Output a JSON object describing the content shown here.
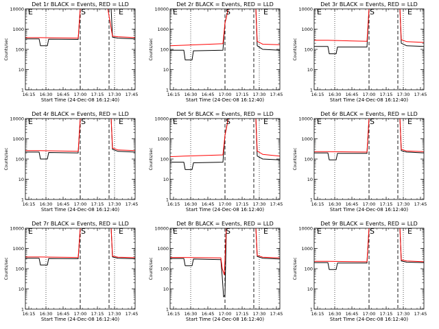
{
  "chart_data": [
    {
      "type": "line",
      "title": "Det 1r BLACK = Events, RED = LLD",
      "xlabel": "Start Time (24-Dec-08 16:12:40)",
      "ylabel": "Counts/sec",
      "yscale": "log",
      "ylim": [
        1,
        10000
      ],
      "ytick_labels": [
        "1",
        "10",
        "100",
        "1000",
        "10000"
      ],
      "xlim": [
        16.2,
        17.8
      ],
      "xtick_labels": [
        "16:15",
        "16:30",
        "16:45",
        "17:00",
        "17:15",
        "17:30",
        "17:45"
      ],
      "markers": [
        {
          "label": "E",
          "x": 16.23
        },
        {
          "label": "S",
          "x": 17.0
        },
        {
          "label": "E",
          "x": 17.55
        }
      ],
      "series": [
        {
          "name": "Events",
          "color": "#000000",
          "x": [
            16.2,
            16.4,
            16.42,
            16.52,
            16.54,
            16.97,
            17.0,
            17.05,
            17.45,
            17.47,
            17.55,
            17.8
          ],
          "y": [
            330,
            330,
            150,
            150,
            320,
            310,
            10000,
            12000,
            12000,
            400,
            360,
            330
          ]
        },
        {
          "name": "LLD",
          "color": "#ff0000",
          "x": [
            16.2,
            16.4,
            16.97,
            17.0,
            17.05,
            17.4,
            17.47,
            17.55,
            17.8
          ],
          "y": [
            380,
            380,
            360,
            10000,
            12000,
            12000,
            450,
            420,
            380
          ]
        }
      ]
    },
    {
      "type": "line",
      "title": "Det 2r BLACK = Events, RED = LLD",
      "xlabel": "Start Time (24-Dec-08 16:12:40)",
      "ylabel": "Counts/sec",
      "yscale": "log",
      "ylim": [
        1,
        10000
      ],
      "ytick_labels": [
        "1",
        "10",
        "100",
        "1000",
        "10000"
      ],
      "xlim": [
        16.2,
        17.8
      ],
      "xtick_labels": [
        "16:15",
        "16:30",
        "16:45",
        "17:00",
        "17:15",
        "17:30",
        "17:45"
      ],
      "markers": [
        {
          "label": "E",
          "x": 16.23
        },
        {
          "label": "S",
          "x": 17.0
        },
        {
          "label": "E",
          "x": 17.55
        }
      ],
      "series": [
        {
          "name": "Events",
          "color": "#000000",
          "x": [
            16.2,
            16.4,
            16.42,
            16.52,
            16.54,
            16.97,
            17.0,
            17.05,
            17.45,
            17.47,
            17.55,
            17.8
          ],
          "y": [
            90,
            90,
            30,
            30,
            85,
            90,
            2000,
            12000,
            12000,
            150,
            100,
            90
          ]
        },
        {
          "name": "LLD",
          "color": "#ff0000",
          "x": [
            16.2,
            16.4,
            16.97,
            17.0,
            17.05,
            17.45,
            17.47,
            17.55,
            17.8
          ],
          "y": [
            150,
            160,
            190,
            2000,
            12000,
            12000,
            250,
            180,
            170
          ]
        }
      ]
    },
    {
      "type": "line",
      "title": "Det 3r BLACK = Events, RED = LLD",
      "xlabel": "Start Time (24-Dec-08 16:12:40)",
      "ylabel": "Counts/sec",
      "yscale": "log",
      "ylim": [
        1,
        10000
      ],
      "ytick_labels": [
        "1",
        "10",
        "100",
        "1000",
        "10000"
      ],
      "xlim": [
        16.2,
        17.8
      ],
      "xtick_labels": [
        "16:15",
        "16:30",
        "16:45",
        "17:00",
        "17:15",
        "17:30",
        "17:45"
      ],
      "markers": [
        {
          "label": "E",
          "x": 16.23
        },
        {
          "label": "S",
          "x": 17.0
        },
        {
          "label": "E",
          "x": 17.55
        }
      ],
      "series": [
        {
          "name": "Events",
          "color": "#000000",
          "x": [
            16.2,
            16.4,
            16.42,
            16.52,
            16.54,
            16.97,
            17.0,
            17.05,
            17.45,
            17.47,
            17.55,
            17.8
          ],
          "y": [
            140,
            140,
            60,
            60,
            130,
            130,
            10000,
            12000,
            12000,
            200,
            150,
            140
          ]
        },
        {
          "name": "LLD",
          "color": "#ff0000",
          "x": [
            16.2,
            16.4,
            16.97,
            17.0,
            17.05,
            17.45,
            17.47,
            17.55,
            17.8
          ],
          "y": [
            280,
            280,
            250,
            10000,
            12000,
            12000,
            300,
            240,
            220
          ]
        }
      ]
    },
    {
      "type": "line",
      "title": "Det 4r BLACK = Events, RED = LLD",
      "xlabel": "Start Time (24-Dec-08 16:12:40)",
      "ylabel": "Counts/sec",
      "yscale": "log",
      "ylim": [
        1,
        10000
      ],
      "ytick_labels": [
        "1",
        "10",
        "100",
        "1000",
        "10000"
      ],
      "xlim": [
        16.2,
        17.8
      ],
      "xtick_labels": [
        "16:15",
        "16:30",
        "16:45",
        "17:00",
        "17:15",
        "17:30",
        "17:45"
      ],
      "markers": [
        {
          "label": "E",
          "x": 16.23
        },
        {
          "label": "S",
          "x": 17.0
        },
        {
          "label": "E",
          "x": 17.55
        }
      ],
      "series": [
        {
          "name": "Events",
          "color": "#000000",
          "x": [
            16.2,
            16.4,
            16.42,
            16.52,
            16.54,
            16.97,
            17.0,
            17.05,
            17.45,
            17.47,
            17.55,
            17.8
          ],
          "y": [
            220,
            220,
            100,
            100,
            210,
            200,
            10000,
            12000,
            12000,
            300,
            240,
            220
          ]
        },
        {
          "name": "LLD",
          "color": "#ff0000",
          "x": [
            16.2,
            16.4,
            16.97,
            17.0,
            17.05,
            17.45,
            17.47,
            17.55,
            17.8
          ],
          "y": [
            260,
            260,
            240,
            10000,
            12000,
            12000,
            350,
            280,
            260
          ]
        }
      ]
    },
    {
      "type": "line",
      "title": "Det 5r BLACK = Events, RED = LLD",
      "xlabel": "Start Time (24-Dec-08 16:12:40)",
      "ylabel": "Counts/sec",
      "yscale": "log",
      "ylim": [
        1,
        10000
      ],
      "ytick_labels": [
        "1",
        "10",
        "100",
        "1000",
        "10000"
      ],
      "xlim": [
        16.2,
        17.8
      ],
      "xtick_labels": [
        "16:15",
        "16:30",
        "16:45",
        "17:00",
        "17:15",
        "17:30",
        "17:45"
      ],
      "markers": [
        {
          "label": "E",
          "x": 16.23
        },
        {
          "label": "S",
          "x": 17.0
        },
        {
          "label": "E",
          "x": 17.55
        }
      ],
      "series": [
        {
          "name": "Events",
          "color": "#000000",
          "x": [
            16.2,
            16.4,
            16.42,
            16.52,
            16.54,
            16.97,
            17.0,
            17.05,
            17.45,
            17.47,
            17.55,
            17.8
          ],
          "y": [
            70,
            70,
            30,
            30,
            65,
            70,
            1500,
            12000,
            12000,
            140,
            100,
            90
          ]
        },
        {
          "name": "LLD",
          "color": "#ff0000",
          "x": [
            16.2,
            16.4,
            16.97,
            17.0,
            17.05,
            17.45,
            17.47,
            17.55,
            17.8
          ],
          "y": [
            130,
            140,
            160,
            1500,
            12000,
            12000,
            250,
            170,
            140
          ]
        }
      ]
    },
    {
      "type": "line",
      "title": "Det 6r BLACK = Events, RED = LLD",
      "xlabel": "Start Time (24-Dec-08 16:12:40)",
      "ylabel": "Counts/sec",
      "yscale": "log",
      "ylim": [
        1,
        10000
      ],
      "ytick_labels": [
        "1",
        "10",
        "100",
        "1000",
        "10000"
      ],
      "xlim": [
        16.2,
        17.8
      ],
      "xtick_labels": [
        "16:15",
        "16:30",
        "16:45",
        "17:00",
        "17:15",
        "17:30",
        "17:45"
      ],
      "markers": [
        {
          "label": "E",
          "x": 16.23
        },
        {
          "label": "S",
          "x": 17.0
        },
        {
          "label": "E",
          "x": 17.55
        }
      ],
      "series": [
        {
          "name": "Events",
          "color": "#000000",
          "x": [
            16.2,
            16.4,
            16.42,
            16.52,
            16.54,
            16.97,
            17.0,
            17.05,
            17.45,
            17.47,
            17.55,
            17.8
          ],
          "y": [
            200,
            200,
            90,
            90,
            190,
            190,
            10000,
            12000,
            12000,
            260,
            220,
            200
          ]
        },
        {
          "name": "LLD",
          "color": "#ff0000",
          "x": [
            16.2,
            16.4,
            16.97,
            17.0,
            17.05,
            17.45,
            17.47,
            17.55,
            17.8
          ],
          "y": [
            230,
            230,
            220,
            10000,
            12000,
            12000,
            300,
            250,
            230
          ]
        }
      ]
    },
    {
      "type": "line",
      "title": "Det 7r BLACK = Events, RED = LLD",
      "xlabel": "Start Time (24-Dec-08 16:12:40)",
      "ylabel": "Counts/sec",
      "yscale": "log",
      "ylim": [
        1,
        10000
      ],
      "ytick_labels": [
        "1",
        "10",
        "100",
        "1000",
        "10000"
      ],
      "xlim": [
        16.2,
        17.8
      ],
      "xtick_labels": [
        "16:15",
        "16:30",
        "16:45",
        "17:00",
        "17:15",
        "17:30",
        "17:45"
      ],
      "markers": [
        {
          "label": "E",
          "x": 16.23
        },
        {
          "label": "S",
          "x": 17.0
        },
        {
          "label": "E",
          "x": 17.55
        }
      ],
      "series": [
        {
          "name": "Events",
          "color": "#000000",
          "x": [
            16.2,
            16.4,
            16.42,
            16.52,
            16.54,
            16.97,
            17.0,
            17.05,
            17.45,
            17.47,
            17.55,
            17.8
          ],
          "y": [
            330,
            330,
            150,
            150,
            320,
            310,
            10000,
            12000,
            12000,
            380,
            330,
            310
          ]
        },
        {
          "name": "LLD",
          "color": "#ff0000",
          "x": [
            16.2,
            16.4,
            16.97,
            17.0,
            17.05,
            17.45,
            17.47,
            17.55,
            17.8
          ],
          "y": [
            380,
            380,
            360,
            10000,
            12000,
            12000,
            420,
            370,
            350
          ]
        }
      ]
    },
    {
      "type": "line",
      "title": "Det 8r BLACK = Events, RED = LLD",
      "xlabel": "Start Time (24-Dec-08 16:12:40)",
      "ylabel": "Counts/sec",
      "yscale": "log",
      "ylim": [
        1,
        10000
      ],
      "ytick_labels": [
        "1",
        "10",
        "100",
        "1000",
        "10000"
      ],
      "xlim": [
        16.2,
        17.8
      ],
      "xtick_labels": [
        "16:15",
        "16:30",
        "16:45",
        "17:00",
        "17:15",
        "17:30",
        "17:45"
      ],
      "markers": [
        {
          "label": "E",
          "x": 16.23
        },
        {
          "label": "S",
          "x": 17.0
        },
        {
          "label": "E",
          "x": 17.55
        }
      ],
      "series": [
        {
          "name": "Events",
          "color": "#000000",
          "x": [
            16.2,
            16.4,
            16.42,
            16.52,
            16.54,
            16.94,
            16.96,
            16.98,
            17.0,
            17.02,
            17.05,
            17.45,
            17.47,
            17.55,
            17.8
          ],
          "y": [
            320,
            320,
            140,
            140,
            300,
            280,
            40,
            4,
            5,
            10000,
            12000,
            12000,
            400,
            330,
            300
          ]
        },
        {
          "name": "LLD",
          "color": "#ff0000",
          "x": [
            16.2,
            16.4,
            16.94,
            16.96,
            16.99,
            17.02,
            17.05,
            17.45,
            17.47,
            17.55,
            17.8
          ],
          "y": [
            360,
            360,
            340,
            100,
            50,
            10000,
            12000,
            12000,
            450,
            370,
            340
          ]
        }
      ]
    },
    {
      "type": "line",
      "title": "Det 9r BLACK = Events, RED = LLD",
      "xlabel": "Start Time (24-Dec-08 16:12:40)",
      "ylabel": "Counts/sec",
      "yscale": "log",
      "ylim": [
        1,
        10000
      ],
      "ytick_labels": [
        "1",
        "10",
        "100",
        "1000",
        "10000"
      ],
      "xlim": [
        16.2,
        17.8
      ],
      "xtick_labels": [
        "16:15",
        "16:30",
        "16:45",
        "17:00",
        "17:15",
        "17:30",
        "17:45"
      ],
      "markers": [
        {
          "label": "E",
          "x": 16.23
        },
        {
          "label": "S",
          "x": 17.0
        },
        {
          "label": "E",
          "x": 17.55
        }
      ],
      "series": [
        {
          "name": "Events",
          "color": "#000000",
          "x": [
            16.2,
            16.4,
            16.42,
            16.52,
            16.54,
            16.97,
            17.0,
            17.05,
            17.45,
            17.47,
            17.55,
            17.8
          ],
          "y": [
            200,
            200,
            90,
            90,
            190,
            190,
            10000,
            12000,
            12000,
            240,
            210,
            200
          ]
        },
        {
          "name": "LLD",
          "color": "#ff0000",
          "x": [
            16.2,
            16.4,
            16.97,
            17.0,
            17.05,
            17.45,
            17.47,
            17.55,
            17.8
          ],
          "y": [
            230,
            230,
            220,
            10000,
            12000,
            12000,
            270,
            240,
            220
          ]
        }
      ]
    }
  ]
}
